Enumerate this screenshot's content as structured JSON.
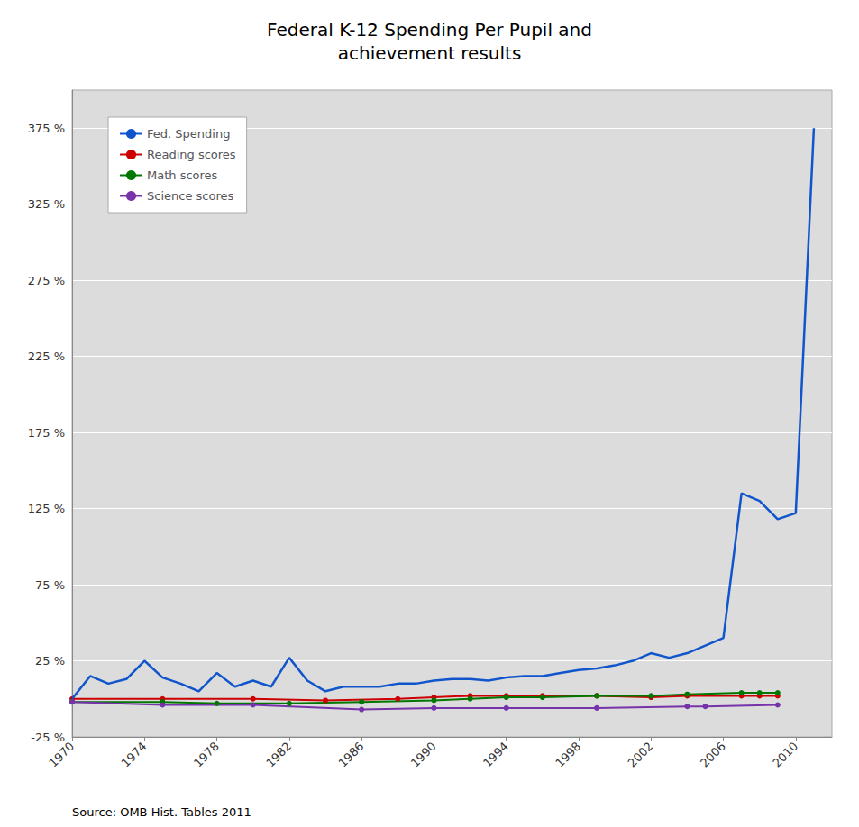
{
  "chart_data": {
    "type": "line",
    "title": "Federal K-12 Spending Per Pupil and\nachievement results",
    "annotations": [
      "Source: OMB Hist. Tables 2011"
    ],
    "xlim": [
      1970,
      2012
    ],
    "xticks": [
      1970,
      1974,
      1978,
      1982,
      1986,
      1990,
      1994,
      1998,
      2002,
      2006,
      2010
    ],
    "ylim": [
      -25,
      400
    ],
    "yticks": [
      {
        "value": -25,
        "label": "-25 %"
      },
      {
        "value": 25,
        "label": "25 %"
      },
      {
        "value": 75,
        "label": "75 %"
      },
      {
        "value": 125,
        "label": "125 %"
      },
      {
        "value": 175,
        "label": "175 %"
      },
      {
        "value": 225,
        "label": "225 %"
      },
      {
        "value": 275,
        "label": "275 %"
      },
      {
        "value": 325,
        "label": "325 %"
      },
      {
        "value": 375,
        "label": "375 %"
      }
    ],
    "grid": true,
    "legend": "upper left",
    "series": [
      {
        "name": "Fed. Spending",
        "color": "#1155cc",
        "x": [
          1970,
          1971,
          1972,
          1973,
          1974,
          1975,
          1976,
          1977,
          1978,
          1979,
          1980,
          1981,
          1982,
          1983,
          1984,
          1985,
          1986,
          1987,
          1988,
          1989,
          1990,
          1991,
          1992,
          1993,
          1994,
          1995,
          1996,
          1997,
          1998,
          1999,
          2000,
          2001,
          2002,
          2003,
          2004,
          2005,
          2006,
          2007,
          2008,
          2009,
          2010,
          2011
        ],
        "values": [
          0,
          15,
          10,
          13,
          25,
          14,
          10,
          5,
          17,
          8,
          12,
          8,
          27,
          12,
          5,
          8,
          8,
          8,
          10,
          10,
          12,
          13,
          13,
          12,
          14,
          15,
          15,
          17,
          19,
          20,
          22,
          25,
          30,
          27,
          30,
          35,
          40,
          135,
          130,
          118,
          122,
          375
        ]
      },
      {
        "name": "Reading scores",
        "color": "#cc0000",
        "marker": "circle",
        "x": [
          1970,
          1975,
          1980,
          1984,
          1988,
          1990,
          1992,
          1994,
          1996,
          1999,
          2002,
          2004,
          2007,
          2008,
          2009
        ],
        "values": [
          0,
          0,
          0,
          -1,
          0,
          1,
          2,
          2,
          2,
          2,
          1,
          2,
          2,
          2,
          2
        ]
      },
      {
        "name": "Math scores",
        "color": "#007700",
        "marker": "circle",
        "x": [
          1970,
          1975,
          1978,
          1982,
          1986,
          1990,
          1992,
          1994,
          1996,
          1999,
          2002,
          2004,
          2007,
          2008,
          2009
        ],
        "values": [
          -2,
          -2,
          -3,
          -3,
          -2,
          -1,
          0,
          1,
          1,
          2,
          2,
          3,
          4,
          4,
          4
        ]
      },
      {
        "name": "Science scores",
        "color": "#7733aa",
        "marker": "circle",
        "x": [
          1970,
          1975,
          1980,
          1986,
          1990,
          1994,
          1999,
          2004,
          2005,
          2009
        ],
        "values": [
          -2,
          -4,
          -4,
          -7,
          -6,
          -6,
          -6,
          -5,
          -5,
          -4
        ]
      }
    ]
  }
}
